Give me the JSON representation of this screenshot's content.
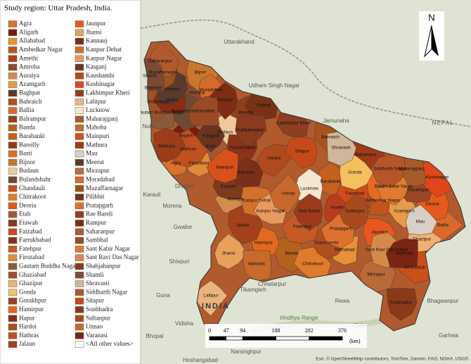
{
  "title": "Study region: Uttar Pradesh, India.",
  "legend": {
    "items": [
      {
        "name": "Agra",
        "color": "#d9722b"
      },
      {
        "name": "Aligarh",
        "color": "#7a1a0c"
      },
      {
        "name": "Allahabad",
        "color": "#e8913a"
      },
      {
        "name": "Ambedkar Nagar",
        "color": "#c2531a"
      },
      {
        "name": "Amethi",
        "color": "#b83c1d"
      },
      {
        "name": "Amroha",
        "color": "#8b4a2a"
      },
      {
        "name": "Auraiya",
        "color": "#d58a4e"
      },
      {
        "name": "Azamgarh",
        "color": "#e89a48"
      },
      {
        "name": "Baghpat",
        "color": "#5c3a28"
      },
      {
        "name": "Bahraich",
        "color": "#a8521e"
      },
      {
        "name": "Ballia",
        "color": "#d96a2c"
      },
      {
        "name": "Balrampur",
        "color": "#9c3b1a"
      },
      {
        "name": "Banda",
        "color": "#b5621e"
      },
      {
        "name": "Barabanki",
        "color": "#c4611e"
      },
      {
        "name": "Bareilly",
        "color": "#8f3e1c"
      },
      {
        "name": "Basti",
        "color": "#e56a20"
      },
      {
        "name": "Bijnor",
        "color": "#c9762f"
      },
      {
        "name": "Budaun",
        "color": "#f0c89a"
      },
      {
        "name": "Bulandshahr",
        "color": "#6e4a30"
      },
      {
        "name": "Chandauli",
        "color": "#c9501a"
      },
      {
        "name": "Chitrakoot",
        "color": "#e07b2b"
      },
      {
        "name": "Deoria",
        "color": "#e55a1a"
      },
      {
        "name": "Etah",
        "color": "#a05a32"
      },
      {
        "name": "Etawah",
        "color": "#7d3a1e"
      },
      {
        "name": "Faizabad",
        "color": "#cf4a1c"
      },
      {
        "name": "Farrukhabad",
        "color": "#8a3318"
      },
      {
        "name": "Fatehpur",
        "color": "#c55a25"
      },
      {
        "name": "Firozabad",
        "color": "#e08a3a"
      },
      {
        "name": "Gautam Buddha Nagar",
        "color": "#8a5a3c"
      },
      {
        "name": "Ghaziabad",
        "color": "#a0522d"
      },
      {
        "name": "Ghazipur",
        "color": "#f0b070"
      },
      {
        "name": "Gonda",
        "color": "#f4c060"
      },
      {
        "name": "Gorakhpur",
        "color": "#9a4624"
      },
      {
        "name": "Hamirpur",
        "color": "#e26a1e"
      },
      {
        "name": "Hapur",
        "color": "#8b2c14"
      },
      {
        "name": "Hardoi",
        "color": "#b04a1c"
      },
      {
        "name": "Hathras",
        "color": "#c05020"
      },
      {
        "name": "Jalaun",
        "color": "#a3411a"
      },
      {
        "name": "Jaunpur",
        "color": "#e8581e"
      },
      {
        "name": "Jhansi",
        "color": "#e9a05c"
      },
      {
        "name": "Kannauj",
        "color": "#7b2f18"
      },
      {
        "name": "Kanpur Dehat",
        "color": "#d3702c"
      },
      {
        "name": "Kanpur Nagar",
        "color": "#e89a5e"
      },
      {
        "name": "Kasganj",
        "color": "#6b3420"
      },
      {
        "name": "Kaushambi",
        "color": "#b14e1e"
      },
      {
        "name": "Kushinagar",
        "color": "#e0461c"
      },
      {
        "name": "Lakhimpur Kheri",
        "color": "#8e3e22"
      },
      {
        "name": "Lalitpur",
        "color": "#eab47c"
      },
      {
        "name": "Lucknow",
        "color": "#f5e6d0"
      },
      {
        "name": "Maharajganj",
        "color": "#a85a2a"
      },
      {
        "name": "Mahoba",
        "color": "#c96a2a"
      },
      {
        "name": "Mainpuri",
        "color": "#d9501c"
      },
      {
        "name": "Mathura",
        "color": "#9c3c1a"
      },
      {
        "name": "Mau",
        "color": "#d9cfc4"
      },
      {
        "name": "Meerut",
        "color": "#5a3a2c"
      },
      {
        "name": "Mirzapur",
        "color": "#b96a38"
      },
      {
        "name": "Moradabad",
        "color": "#d56a2a"
      },
      {
        "name": "Muzaffarnagar",
        "color": "#a0521e"
      },
      {
        "name": "Pilibhit",
        "color": "#7a3216"
      },
      {
        "name": "Pratapgarh",
        "color": "#e07030"
      },
      {
        "name": "Rae Bareli",
        "color": "#9b3a1c"
      },
      {
        "name": "Rampur",
        "color": "#7e2c14"
      },
      {
        "name": "Saharanpur",
        "color": "#b05a2e"
      },
      {
        "name": "Sambhal",
        "color": "#9a4a26"
      },
      {
        "name": "Sant Kabir Nagar",
        "color": "#e07a30"
      },
      {
        "name": "Sant Ravi Das Nagar",
        "color": "#d48a4a"
      },
      {
        "name": "Shahjahanpur",
        "color": "#8a3a1e"
      },
      {
        "name": "Shamli",
        "color": "#7b4a36"
      },
      {
        "name": "Shravasti",
        "color": "#d2b69a"
      },
      {
        "name": "Siddharth Nagar",
        "color": "#b8542a"
      },
      {
        "name": "Sitapur",
        "color": "#c44a1a"
      },
      {
        "name": "Sonbhadra",
        "color": "#8a3a18"
      },
      {
        "name": "Sultanpur",
        "color": "#a84a1e"
      },
      {
        "name": "Unnao",
        "color": "#c8682c"
      },
      {
        "name": "Varanasi",
        "color": "#7a2414"
      },
      {
        "name": "<All other values>",
        "color": "#ffffff"
      }
    ]
  },
  "map_labels": [
    "Uttarakhand",
    "Udham Singh Nagar",
    "Jamunaha",
    "NEPAL",
    "Nuh",
    "Karauli",
    "Dholpur",
    "Morena",
    "Gwalior",
    "Shivpuri",
    "Guna",
    "Tikamgarh",
    "Chhatarpur",
    "Vindhya Range",
    "Rewa",
    "Sidhi",
    "Bhagwanpur",
    "Garhwa",
    "INDIA",
    "Vidisha",
    "Bhopal",
    "Narsinghpur",
    "Hoshangabad"
  ],
  "scale": {
    "ticks": [
      0,
      47,
      94,
      188,
      282,
      376
    ],
    "unit": "(km)"
  },
  "north": "N",
  "attribution": "Esri, © OpenStreetMap contributors, TomTom, Garmin, FAO, NOAA, USGS"
}
